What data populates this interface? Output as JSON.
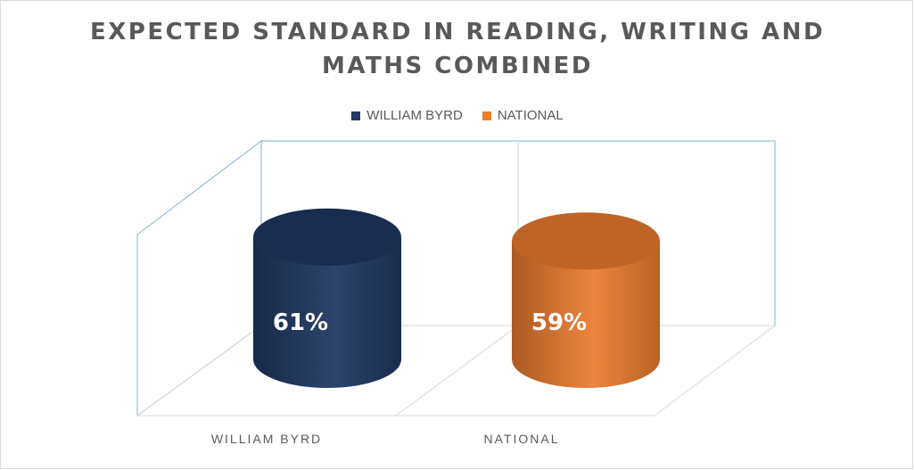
{
  "chart_data": {
    "type": "bar",
    "style": "3d-cylinder",
    "title": "EXPECTED STANDARD IN READING, WRITING AND MATHS COMBINED",
    "title_lines": [
      "EXPECTED STANDARD IN READING, WRITING AND",
      "MATHS COMBINED"
    ],
    "categories": [
      "WILLIAM BYRD",
      "NATIONAL"
    ],
    "series": [
      {
        "name": "WILLIAM BYRD",
        "category": "WILLIAM BYRD",
        "value": 61,
        "label": "61%",
        "color": "#203864"
      },
      {
        "name": "NATIONAL",
        "category": "NATIONAL",
        "value": 59,
        "label": "59%",
        "color": "#ed7d31"
      }
    ],
    "legend": {
      "position": "top",
      "entries": [
        "WILLIAM BYRD",
        "NATIONAL"
      ]
    },
    "value_axis": {
      "visible": false
    },
    "grid": false
  }
}
